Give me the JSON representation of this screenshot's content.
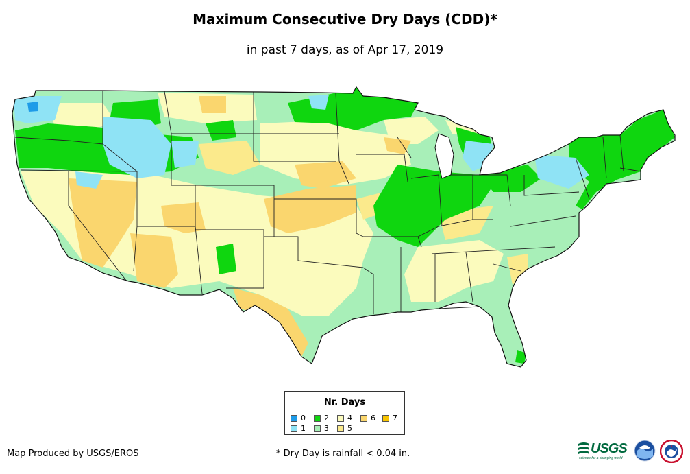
{
  "header": {
    "title": "Maximum Consecutive Dry Days (CDD)*",
    "subtitle": "in past 7 days, as of Apr 17, 2019"
  },
  "legend": {
    "title": "Nr. Days",
    "items": [
      {
        "label": "0",
        "color": "#1e9be8"
      },
      {
        "label": "1",
        "color": "#8fe3f5"
      },
      {
        "label": "2",
        "color": "#0fd60f"
      },
      {
        "label": "3",
        "color": "#a8efb8"
      },
      {
        "label": "4",
        "color": "#fbfbbd"
      },
      {
        "label": "5",
        "color": "#fbea8c"
      },
      {
        "label": "6",
        "color": "#fad66e"
      },
      {
        "label": "7",
        "color": "#f7c400"
      }
    ]
  },
  "footer": {
    "credit": "Map Produced by USGS/EROS",
    "footnote": "* Dry Day is rainfall < 0.04 in.",
    "usgs_logo_text": "USGS",
    "usgs_tagline": "science for a changing world"
  },
  "logos": [
    "usgs-logo",
    "noaa-logo",
    "nws-logo"
  ]
}
